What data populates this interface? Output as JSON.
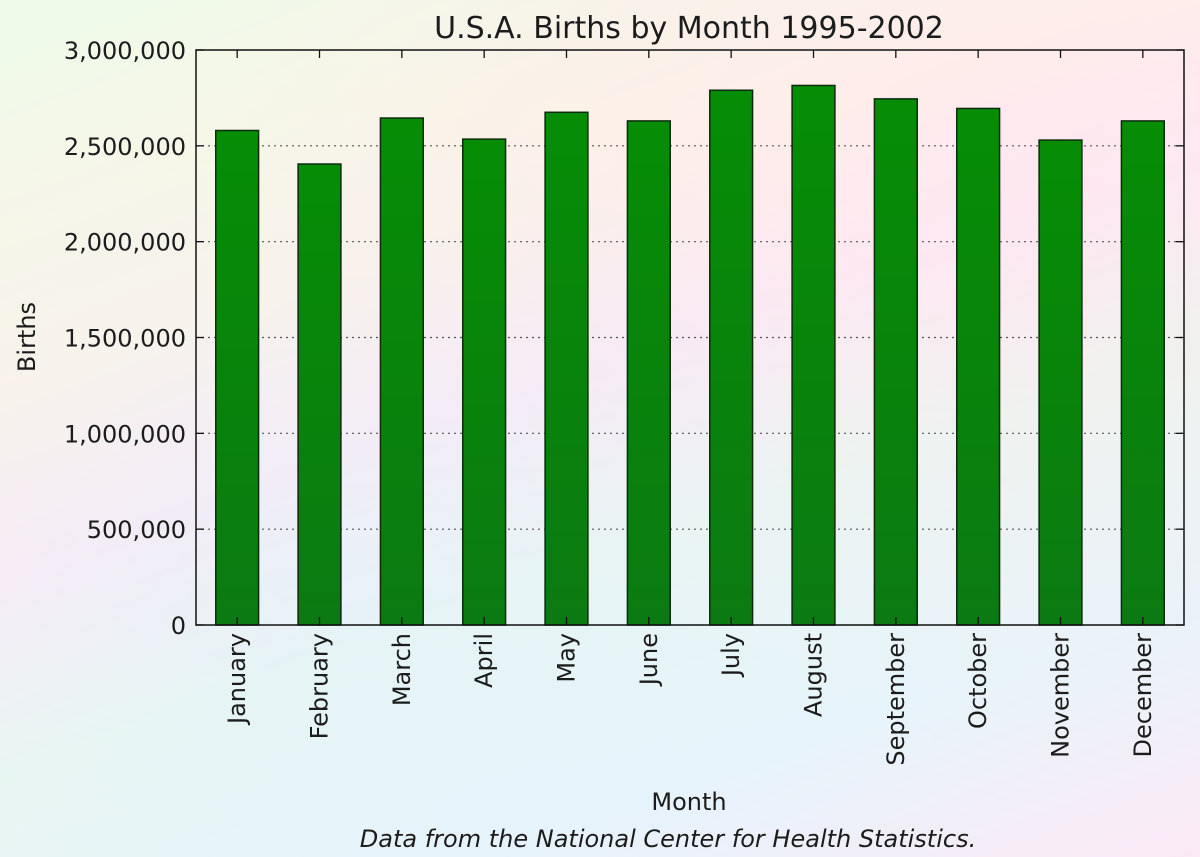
{
  "chart_data": {
    "type": "bar",
    "title": "U.S.A. Births by Month 1995-2002",
    "xlabel": "Month",
    "ylabel": "Births",
    "caption": "Data from the National Center for Health Statistics.",
    "categories": [
      "January",
      "February",
      "March",
      "April",
      "May",
      "June",
      "July",
      "August",
      "September",
      "October",
      "November",
      "December"
    ],
    "values": [
      2580000,
      2405000,
      2645000,
      2535000,
      2675000,
      2630000,
      2790000,
      2815000,
      2745000,
      2695000,
      2530000,
      2630000
    ],
    "ylim": [
      0,
      3000000
    ],
    "yticks": [
      0,
      500000,
      1000000,
      1500000,
      2000000,
      2500000,
      3000000
    ],
    "ytick_labels": [
      "0",
      "500,000",
      "1,000,000",
      "1,500,000",
      "2,000,000",
      "2,500,000",
      "3,000,000"
    ],
    "grid": "horizontal dotted",
    "bar_color": "#088a08",
    "bar_edge_color": "#0d2a0d"
  }
}
